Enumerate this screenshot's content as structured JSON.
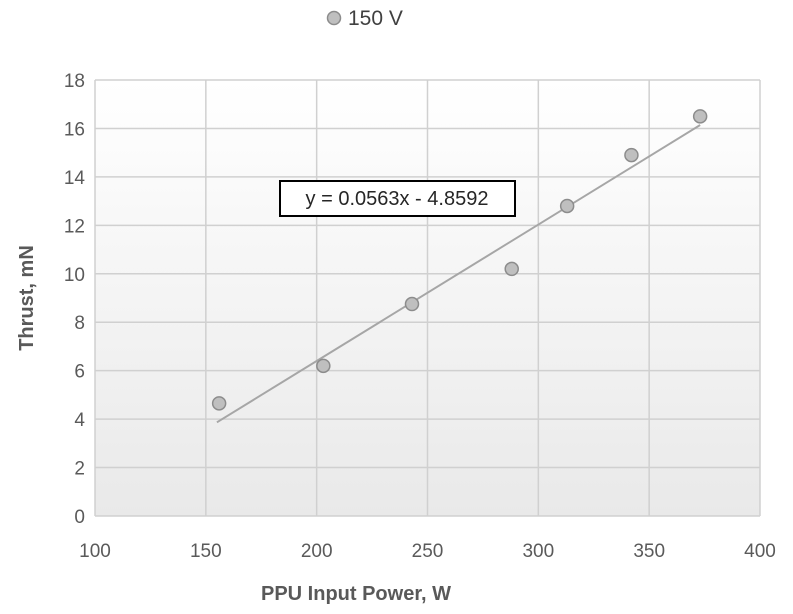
{
  "chart_data": {
    "type": "scatter",
    "series": [
      {
        "name": "150 V",
        "color": "#bfbfbf",
        "points": [
          {
            "x": 156,
            "y": 4.65
          },
          {
            "x": 203,
            "y": 6.2
          },
          {
            "x": 243,
            "y": 8.75
          },
          {
            "x": 288,
            "y": 10.2
          },
          {
            "x": 313,
            "y": 12.8
          },
          {
            "x": 342,
            "y": 14.9
          },
          {
            "x": 373,
            "y": 16.5
          }
        ]
      }
    ],
    "trendline": {
      "label": "y = 0.0563x - 4.8592",
      "slope": 0.0563,
      "intercept": -4.8592,
      "x_range": [
        155,
        373
      ],
      "color": "#a6a6a6"
    },
    "xlabel": "PPU Input Power, W",
    "ylabel": "Thrust, mN",
    "xlim": [
      100,
      400
    ],
    "ylim": [
      0,
      18
    ],
    "xticks": [
      "100",
      "150",
      "200",
      "250",
      "300",
      "350",
      "400"
    ],
    "yticks": [
      "0",
      "2",
      "4",
      "6",
      "8",
      "10",
      "12",
      "14",
      "16",
      "18"
    ],
    "grid": true,
    "legend_position": "top-center",
    "plot_background": "vertical gradient white to light gray"
  }
}
